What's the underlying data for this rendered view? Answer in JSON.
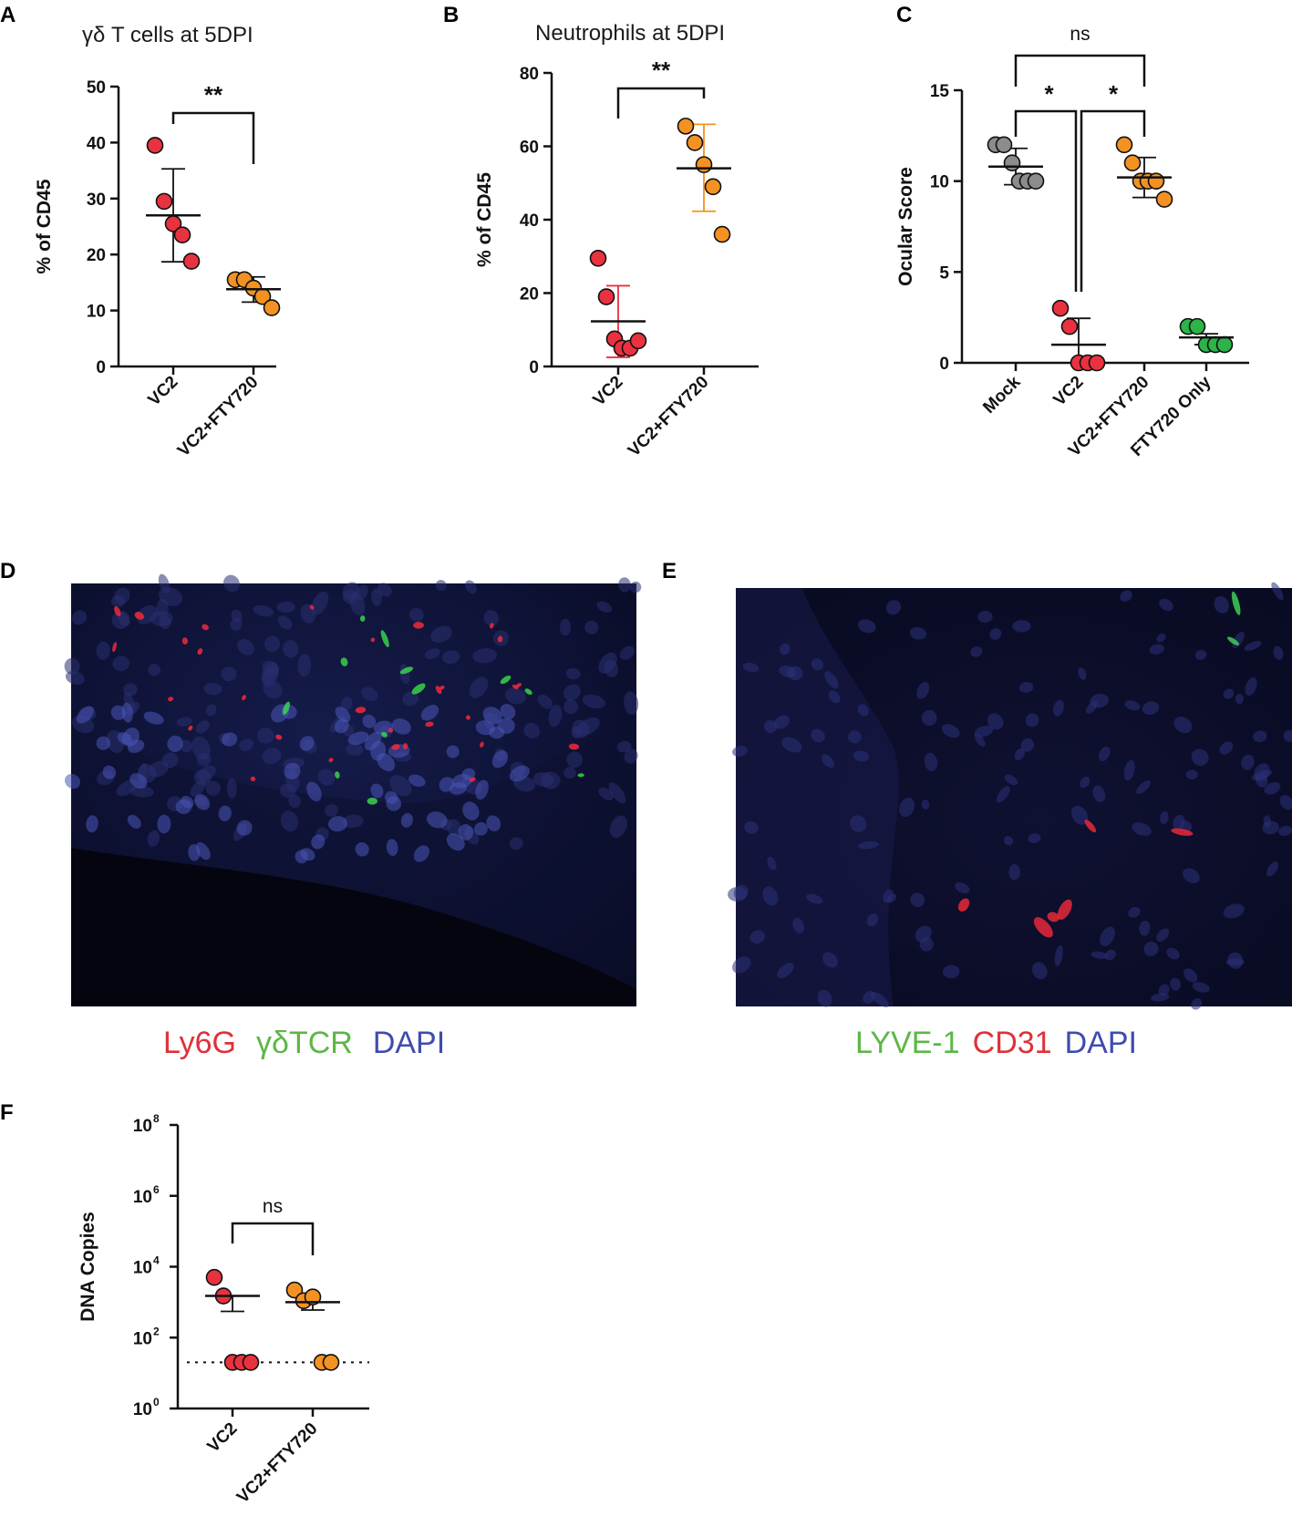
{
  "colors": {
    "red": "#e8323f",
    "orange": "#f39223",
    "gray": "#8c8c8c",
    "green": "#2cb34a",
    "legend_red": "#e0303a",
    "legend_green": "#5cb746",
    "legend_blue": "#3e4cae"
  },
  "panels": {
    "A": "A",
    "B": "B",
    "C": "C",
    "D": "D",
    "E": "E",
    "F": "F"
  },
  "legend_D": [
    "Ly6G",
    "γδTCR",
    "DAPI"
  ],
  "legend_E": [
    "LYVE-1",
    "CD31",
    "DAPI"
  ],
  "micrographs": {
    "D": "Ly6G / γδTCR / DAPI immunofluorescence",
    "E": "LYVE-1 / CD31 / DAPI immunofluorescence"
  },
  "chart_data": [
    {
      "panel": "A",
      "type": "scatter",
      "title": "γδ T cells at 5DPI",
      "ylabel": "% of CD45",
      "ylim": [
        0,
        50
      ],
      "yticks": [
        0,
        10,
        20,
        30,
        40,
        50
      ],
      "categories": [
        "VC2",
        "VC2+FTY720"
      ],
      "series": [
        {
          "category": "VC2",
          "color": "red",
          "points": [
            39.5,
            29.5,
            25.5,
            23.5,
            18.8
          ],
          "mean": 27.0,
          "sd_upper": 35.3,
          "sd_lower": 18.7
        },
        {
          "category": "VC2+FTY720",
          "color": "orange",
          "points": [
            15.5,
            15.5,
            14.0,
            12.5,
            10.5
          ],
          "mean": 13.8,
          "sd_upper": 16.0,
          "sd_lower": 11.5
        }
      ],
      "comparisons": [
        {
          "from": "VC2",
          "to": "VC2+FTY720",
          "label": "**"
        }
      ]
    },
    {
      "panel": "B",
      "type": "scatter",
      "title": "Neutrophils at 5DPI",
      "ylabel": "% of CD45",
      "ylim": [
        0,
        80
      ],
      "yticks": [
        0,
        20,
        40,
        60,
        80
      ],
      "categories": [
        "VC2",
        "VC2+FTY720"
      ],
      "series": [
        {
          "category": "VC2",
          "color": "red",
          "points": [
            29.5,
            19.0,
            7.5,
            5.0,
            5.0,
            7.0
          ],
          "mean": 12.3,
          "sd_upper": 22.0,
          "sd_lower": 2.5
        },
        {
          "category": "VC2+FTY720",
          "color": "orange",
          "points": [
            65.5,
            61.0,
            55.0,
            49.0,
            36.0
          ],
          "mean": 54.0,
          "sd_upper": 66.0,
          "sd_lower": 42.3
        }
      ],
      "comparisons": [
        {
          "from": "VC2",
          "to": "VC2+FTY720",
          "label": "**"
        }
      ]
    },
    {
      "panel": "C",
      "type": "scatter",
      "title": "",
      "ylabel": "Ocular Score",
      "ylim": [
        0,
        15
      ],
      "yticks": [
        0,
        5,
        10,
        15
      ],
      "categories": [
        "Mock",
        "VC2",
        "VC2+FTY720",
        "FTY720 Only"
      ],
      "series": [
        {
          "category": "Mock",
          "color": "gray",
          "points": [
            12.0,
            12.0,
            11.0,
            10.0,
            10.0,
            10.0
          ],
          "mean": 10.8,
          "sd_upper": 11.8,
          "sd_lower": 9.8
        },
        {
          "category": "VC2",
          "color": "red",
          "points": [
            3.0,
            2.0,
            0.0,
            0.0,
            0.0
          ],
          "mean": 1.0,
          "sd_upper": 2.45,
          "sd_lower": 0.0
        },
        {
          "category": "VC2+FTY720",
          "color": "orange",
          "points": [
            12.0,
            11.0,
            10.0,
            10.0,
            10.0,
            9.0
          ],
          "mean": 10.2,
          "sd_upper": 11.3,
          "sd_lower": 9.1
        },
        {
          "category": "FTY720 Only",
          "color": "green",
          "points": [
            2.0,
            2.0,
            1.0,
            1.0,
            1.0
          ],
          "mean": 1.4,
          "sd_upper": 1.6,
          "sd_lower": 1.0
        }
      ],
      "comparisons": [
        {
          "from": "Mock",
          "to": "VC2",
          "label": "*"
        },
        {
          "from": "VC2",
          "to": "VC2+FTY720",
          "label": "*"
        },
        {
          "from": "Mock",
          "to": "VC2+FTY720",
          "label": "ns"
        }
      ]
    },
    {
      "panel": "F",
      "type": "scatter",
      "title": "",
      "ylabel": "DNA Copies",
      "yscale": "log10",
      "ylim": [
        1,
        100000000
      ],
      "yticks": [
        1,
        100,
        10000,
        1000000,
        100000000
      ],
      "ytick_labels": [
        [
          "10",
          "0"
        ],
        [
          "10",
          "2"
        ],
        [
          "10",
          "4"
        ],
        [
          "10",
          "6"
        ],
        [
          "10",
          "8"
        ]
      ],
      "detection_limit": 20,
      "categories": [
        "VC2",
        "VC2+FTY720"
      ],
      "series": [
        {
          "category": "VC2",
          "color": "red",
          "points": [
            5000,
            1500,
            20,
            20,
            20
          ],
          "mean": 1500,
          "sem_upper": 1500,
          "sem_lower": 550
        },
        {
          "category": "VC2+FTY720",
          "color": "orange",
          "points": [
            2200,
            1100,
            1400,
            20,
            20
          ],
          "mean": 1000,
          "sem_upper": 1000,
          "sem_lower": 600
        }
      ],
      "comparisons": [
        {
          "from": "VC2",
          "to": "VC2+FTY720",
          "label": "ns"
        }
      ]
    }
  ]
}
